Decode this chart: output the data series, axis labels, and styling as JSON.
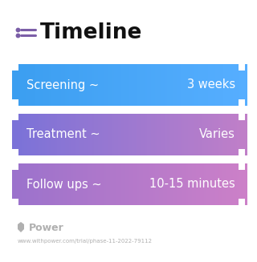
{
  "title": "Timeline",
  "title_icon_color": "#7B5EA7",
  "title_color": "#111111",
  "title_fontsize": 19,
  "background_color": "#ffffff",
  "rows": [
    {
      "label": "Screening ~",
      "value": "3 weeks",
      "color_left": "#3B9EF0",
      "color_right": "#56AEFF"
    },
    {
      "label": "Treatment ~",
      "value": "Varies",
      "color_left": "#7A72D8",
      "color_right": "#C07FC8"
    },
    {
      "label": "Follow ups ~",
      "value": "10-15 minutes",
      "color_left": "#9B72CC",
      "color_right": "#CC80C8"
    }
  ],
  "watermark": "Power",
  "watermark_color": "#b0b0b0",
  "url": "www.withpower.com/trial/phase-11-2022-79112",
  "url_color": "#b0b0b0",
  "label_fontsize": 10.5,
  "value_fontsize": 10.5
}
